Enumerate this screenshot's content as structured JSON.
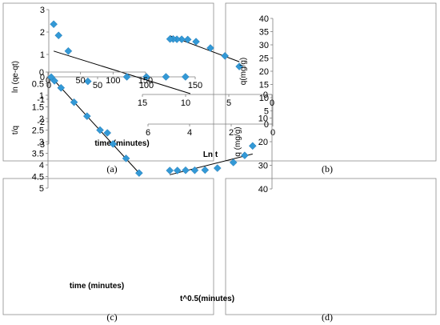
{
  "colors": {
    "marker": "#3399d6",
    "marker_stroke": "#2277b2",
    "trend": "#000000"
  },
  "chart_data": [
    {
      "id": "a",
      "type": "scatter",
      "caption": "(a)",
      "xlabel": "time (minutes)",
      "ylabel": "ln (qe-qt)",
      "xlim": [
        0,
        150
      ],
      "ylim": [
        -3,
        3
      ],
      "xticks": [
        0,
        50,
        100,
        150
      ],
      "yticks": [
        -3,
        -2,
        -1,
        0,
        1,
        2,
        3
      ],
      "x_axis_at": 0,
      "points": [
        [
          5,
          2.35
        ],
        [
          10,
          1.85
        ],
        [
          20,
          1.15
        ],
        [
          40,
          -0.2
        ],
        [
          60,
          -2.5
        ],
        [
          80,
          0.0
        ],
        [
          100,
          0.0
        ],
        [
          120,
          0.0
        ],
        [
          140,
          0.0
        ]
      ],
      "trendline": [
        [
          5,
          1.15
        ],
        [
          145,
          -0.75
        ]
      ]
    },
    {
      "id": "b",
      "type": "scatter",
      "caption": "(b)",
      "xlabel": "Ln t",
      "ylabel": "q(mg/g)",
      "xlim": [
        0,
        6
      ],
      "ylim": [
        0,
        40
      ],
      "xticks": [
        0,
        2,
        4,
        6
      ],
      "yticks": [
        0,
        5,
        10,
        15,
        20,
        25,
        30,
        35,
        40
      ],
      "x_axis_at": 0,
      "points": [
        [
          1.61,
          21.8
        ],
        [
          2.3,
          25.8
        ],
        [
          3.0,
          28.8
        ],
        [
          3.69,
          31.2
        ],
        [
          4.09,
          32.0
        ],
        [
          4.38,
          32.1
        ],
        [
          4.61,
          32.1
        ],
        [
          4.79,
          32.2
        ],
        [
          4.94,
          32.2
        ]
      ],
      "trendline": [
        [
          1.61,
          23.6
        ],
        [
          4.94,
          33.4
        ]
      ]
    },
    {
      "id": "c",
      "type": "scatter",
      "caption": "(c)",
      "xlabel": "time (minutes)",
      "ylabel": "t/q",
      "xlim": [
        0,
        150
      ],
      "ylim": [
        0,
        5
      ],
      "xticks": [
        0,
        50,
        100,
        150
      ],
      "yticks": [
        0,
        0.5,
        1,
        1.5,
        2,
        2.5,
        3,
        3.5,
        4,
        4.5,
        5
      ],
      "x_axis_at": 0,
      "points": [
        [
          5,
          0.22
        ],
        [
          10,
          0.38
        ],
        [
          20,
          0.68
        ],
        [
          40,
          1.3
        ],
        [
          60,
          1.9
        ],
        [
          80,
          2.5
        ],
        [
          100,
          3.1
        ],
        [
          120,
          3.72
        ],
        [
          140,
          4.35
        ]
      ],
      "trendline": [
        [
          5,
          0.22
        ],
        [
          140,
          4.35
        ]
      ]
    },
    {
      "id": "d",
      "type": "scatter",
      "caption": "(d)",
      "xlabel": "t^0.5(minutes)",
      "ylabel": "q (mg/g)",
      "xlim": [
        0,
        15
      ],
      "ylim": [
        0,
        40
      ],
      "xticks": [
        0,
        5,
        10,
        15
      ],
      "yticks": [
        0,
        10,
        20,
        30,
        40
      ],
      "x_axis_at": 0,
      "points": [
        [
          2.24,
          21.8
        ],
        [
          3.16,
          25.8
        ],
        [
          4.47,
          28.8
        ],
        [
          6.32,
          31.2
        ],
        [
          7.75,
          32.0
        ],
        [
          8.94,
          32.1
        ],
        [
          10.0,
          32.1
        ],
        [
          10.95,
          32.2
        ],
        [
          11.83,
          32.2
        ]
      ],
      "trendline": [
        [
          2.24,
          25.2
        ],
        [
          11.83,
          34.0
        ]
      ]
    }
  ]
}
